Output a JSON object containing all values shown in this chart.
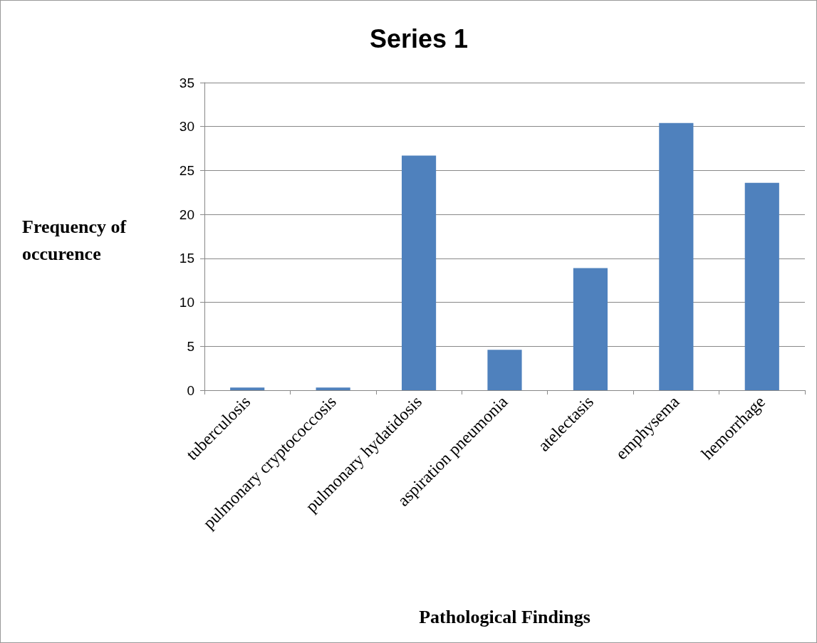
{
  "chart_data": {
    "type": "bar",
    "title": "Series 1",
    "xlabel": "Pathological Findings",
    "ylabel": "Frequency of occurence",
    "categories": [
      "tuberculosis",
      "pulmonary cryptococcosis",
      "pulmonary hydatidosis",
      "aspiration pneumonia",
      "atelectasis",
      "emphysema",
      "hemorrhage"
    ],
    "values": [
      0.3,
      0.3,
      26.7,
      4.6,
      13.9,
      30.4,
      23.6
    ],
    "color": "#4f81bd",
    "ylim": [
      0,
      35
    ],
    "yticks": [
      0,
      5,
      10,
      15,
      20,
      25,
      30,
      35
    ],
    "grid": "y"
  }
}
